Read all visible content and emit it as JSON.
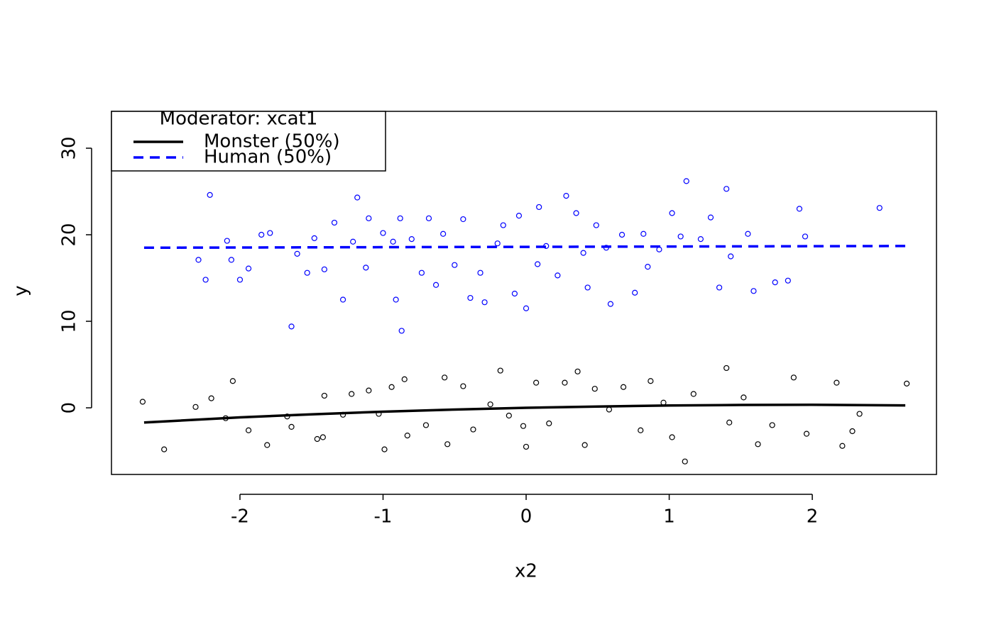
{
  "chart_data": {
    "type": "scatter",
    "xlabel": "x2",
    "ylabel": "y",
    "xlim": [
      -2.898,
      2.868
    ],
    "ylim": [
      -7.7,
      34.26
    ],
    "xticks": [
      -2,
      -1,
      0,
      1,
      2
    ],
    "yticks": [
      0,
      10,
      20,
      30
    ],
    "legend_title": "Moderator: xcat1",
    "legend": "top-left",
    "series": [
      {
        "name": "Monster (50%)",
        "color": "#000000",
        "dash": false,
        "fit": {
          "x": [
            -2.67,
            -2,
            -1.5,
            -1,
            -0.5,
            0,
            0.5,
            1,
            1.5,
            2,
            2.65
          ],
          "y": [
            -1.7,
            -1.1,
            -0.75,
            -0.45,
            -0.2,
            0,
            0.15,
            0.27,
            0.33,
            0.35,
            0.28
          ]
        },
        "x": [
          -2.68,
          -2.53,
          -2.31,
          -2.2,
          -2.1,
          -2.05,
          -1.94,
          -1.81,
          -1.67,
          -1.64,
          -1.46,
          -1.42,
          -1.41,
          -1.28,
          -1.22,
          -1.1,
          -1.03,
          -0.99,
          -0.94,
          -0.85,
          -0.83,
          -0.7,
          -0.57,
          -0.55,
          -0.44,
          -0.37,
          -0.25,
          -0.18,
          -0.12,
          -0.02,
          0.0,
          0.07,
          0.16,
          0.27,
          0.36,
          0.41,
          0.48,
          0.58,
          0.68,
          0.8,
          0.87,
          0.96,
          1.02,
          1.11,
          1.17,
          1.4,
          1.42,
          1.52,
          1.62,
          1.72,
          1.87,
          1.96,
          2.17,
          2.21,
          2.28,
          2.33,
          2.66
        ],
        "y": [
          0.7,
          -4.8,
          0.1,
          1.1,
          -1.2,
          3.1,
          -2.6,
          -4.3,
          -1.0,
          -2.2,
          -3.6,
          -3.4,
          1.4,
          -0.8,
          1.6,
          2.0,
          -0.7,
          -4.8,
          2.4,
          3.3,
          -3.2,
          -2.0,
          3.5,
          -4.2,
          2.5,
          -2.5,
          0.4,
          4.3,
          -0.9,
          -2.1,
          -4.5,
          2.9,
          -1.8,
          2.9,
          4.2,
          -4.3,
          2.2,
          -0.2,
          2.4,
          -2.6,
          3.1,
          0.6,
          -3.4,
          -6.2,
          1.6,
          4.6,
          -1.7,
          1.2,
          -4.2,
          -2.0,
          3.5,
          -3.0,
          2.9,
          -4.4,
          -2.7,
          -0.7,
          2.8
        ]
      },
      {
        "name": "Human (50%)",
        "color": "#0000ff",
        "dash": true,
        "fit": {
          "x": [
            -2.67,
            2.65
          ],
          "y": [
            18.5,
            18.7
          ]
        },
        "x": [
          -2.21,
          -2.29,
          -2.24,
          -2.09,
          -2.06,
          -2.0,
          -1.94,
          -1.85,
          -1.79,
          -1.64,
          -1.6,
          -1.53,
          -1.48,
          -1.41,
          -1.34,
          -1.28,
          -1.21,
          -1.18,
          -1.12,
          -1.1,
          -1.0,
          -0.93,
          -0.91,
          -0.87,
          -0.88,
          -0.8,
          -0.73,
          -0.68,
          -0.63,
          -0.58,
          -0.5,
          -0.44,
          -0.39,
          -0.32,
          -0.29,
          -0.2,
          -0.16,
          -0.08,
          -0.05,
          0.0,
          0.08,
          0.09,
          0.14,
          0.22,
          0.28,
          0.35,
          0.4,
          0.43,
          0.49,
          0.56,
          0.59,
          0.67,
          0.76,
          0.82,
          0.85,
          0.93,
          1.02,
          1.08,
          1.12,
          1.22,
          1.29,
          1.35,
          1.4,
          1.43,
          1.55,
          1.59,
          1.74,
          1.83,
          1.91,
          1.95,
          2.47
        ],
        "y": [
          24.6,
          17.1,
          14.8,
          19.3,
          17.1,
          14.8,
          16.1,
          20.0,
          20.2,
          9.4,
          17.8,
          15.6,
          19.6,
          16.0,
          21.4,
          12.5,
          19.2,
          24.3,
          16.2,
          21.9,
          20.2,
          19.2,
          12.5,
          8.9,
          21.9,
          19.5,
          15.6,
          21.9,
          14.2,
          20.1,
          16.5,
          21.8,
          12.7,
          15.6,
          12.2,
          19.0,
          21.1,
          13.2,
          22.2,
          11.5,
          16.6,
          23.2,
          18.7,
          15.3,
          24.5,
          22.5,
          17.9,
          13.9,
          21.1,
          18.5,
          12.0,
          20.0,
          13.3,
          20.1,
          16.3,
          18.3,
          22.5,
          19.8,
          26.2,
          19.5,
          22.0,
          13.9,
          25.3,
          17.5,
          20.1,
          13.5,
          14.5,
          14.7,
          23.0,
          19.8,
          23.1
        ]
      }
    ]
  }
}
